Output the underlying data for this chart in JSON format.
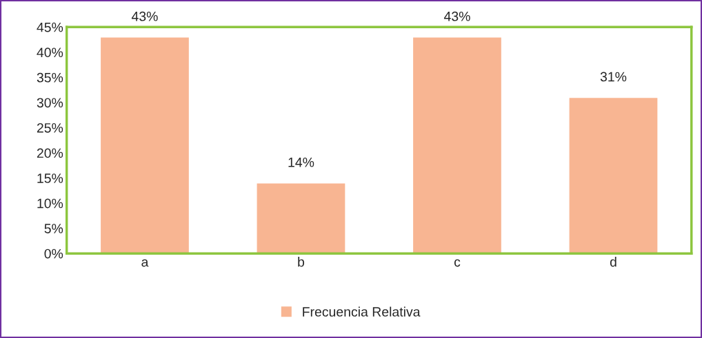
{
  "chart_data": {
    "type": "bar",
    "categories": [
      "a",
      "b",
      "c",
      "d"
    ],
    "series": [
      {
        "name": "Frecuencia Relativa",
        "color": "#f8b592",
        "values": [
          43,
          14,
          43,
          31
        ]
      }
    ],
    "value_labels": [
      "43%",
      "14%",
      "43%",
      "31%"
    ],
    "ylim": [
      0,
      45
    ],
    "yticks": [
      {
        "value": 0,
        "label": "0%"
      },
      {
        "value": 5,
        "label": "5%"
      },
      {
        "value": 10,
        "label": "10%"
      },
      {
        "value": 15,
        "label": "15%"
      },
      {
        "value": 20,
        "label": "20%"
      },
      {
        "value": 25,
        "label": "25%"
      },
      {
        "value": 30,
        "label": "30%"
      },
      {
        "value": 35,
        "label": "35%"
      },
      {
        "value": 40,
        "label": "40%"
      },
      {
        "value": 45,
        "label": "45%"
      }
    ],
    "grid": false,
    "legend": "bottom"
  }
}
